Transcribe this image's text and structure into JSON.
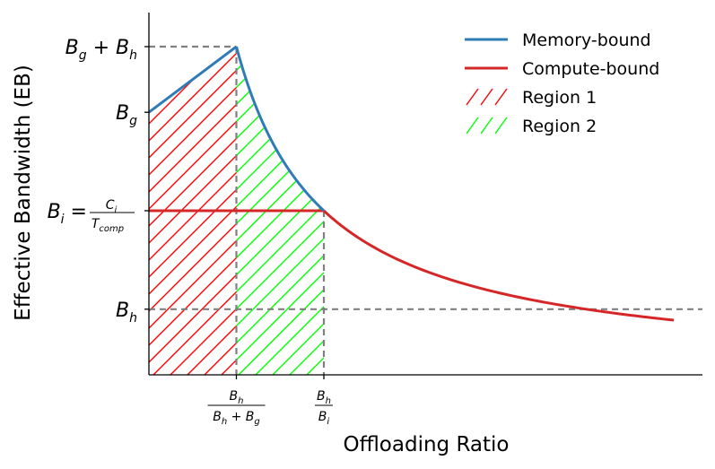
{
  "chart_data": {
    "type": "line",
    "xlabel": "Offloading Ratio",
    "ylabel": "Effective Bandwidth (EB)",
    "x_ticks": [
      {
        "x": 0.2,
        "num": "B",
        "num_sub": "h",
        "den": "B",
        "den_sub": "h",
        "den_mid": " + B",
        "den_sub2": "g"
      },
      {
        "x": 0.4,
        "num": "B",
        "num_sub": "h",
        "den": "B",
        "den_sub": "i"
      }
    ],
    "y_ticks": [
      {
        "y": 1.0,
        "main": "B",
        "sub": "g",
        "extra": " + B",
        "extra_sub": "h",
        "frac_num": "",
        "frac_den": ""
      },
      {
        "y": 0.8,
        "main": "B",
        "sub": "g",
        "extra": "",
        "extra_sub": "",
        "frac_num": "",
        "frac_den": ""
      },
      {
        "y": 0.5,
        "main": "B",
        "sub": "i",
        "extra": " = ",
        "extra_sub": "",
        "frac_num": "C",
        "frac_num_sub": "i",
        "frac_den": "T",
        "frac_den_sub": "comp"
      },
      {
        "y": 0.2,
        "main": "B",
        "sub": "h",
        "extra": "",
        "extra_sub": "",
        "frac_num": "",
        "frac_den": ""
      }
    ],
    "params": {
      "Bg": 0.8,
      "Bh": 0.2,
      "Bi_level": 0.5,
      "x_knee": 0.2,
      "x_compute": 0.4
    },
    "xlim": [
      0,
      1.2
    ],
    "ylim": [
      0,
      1.13
    ],
    "series": [
      {
        "name": "Memory-bound",
        "color": "#2e7bb6",
        "segments": [
          {
            "kind": "linear",
            "x0": 0,
            "y0": 0.8,
            "x1": 0.2,
            "y1": 1.0
          },
          {
            "kind": "reciprocal",
            "x0": 0.2,
            "x1": 0.4,
            "k": 0.2
          }
        ]
      },
      {
        "name": "Compute-bound",
        "color": "#d62728",
        "segments": [
          {
            "kind": "linear",
            "x0": 0,
            "y0": 0.5,
            "x1": 0.4,
            "y1": 0.5
          },
          {
            "kind": "reciprocal",
            "x0": 0.4,
            "x1": 1.2,
            "k": 0.2
          }
        ]
      }
    ],
    "regions": [
      {
        "name": "Region 1",
        "color": "#ff0000",
        "x0": 0,
        "x1": 0.2
      },
      {
        "name": "Region 2",
        "color": "#00ff00",
        "x0": 0.2,
        "x1": 0.4
      }
    ],
    "reference_line_color": "#808080",
    "legend_position": "top-right",
    "grid": false
  }
}
